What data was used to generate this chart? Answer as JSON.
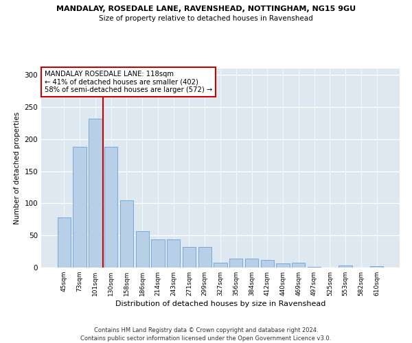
{
  "title_line1": "MANDALAY, ROSEDALE LANE, RAVENSHEAD, NOTTINGHAM, NG15 9GU",
  "title_line2": "Size of property relative to detached houses in Ravenshead",
  "xlabel": "Distribution of detached houses by size in Ravenshead",
  "ylabel": "Number of detached properties",
  "categories": [
    "45sqm",
    "73sqm",
    "101sqm",
    "130sqm",
    "158sqm",
    "186sqm",
    "214sqm",
    "243sqm",
    "271sqm",
    "299sqm",
    "327sqm",
    "356sqm",
    "384sqm",
    "412sqm",
    "440sqm",
    "469sqm",
    "497sqm",
    "525sqm",
    "553sqm",
    "582sqm",
    "610sqm"
  ],
  "values": [
    78,
    188,
    232,
    188,
    105,
    57,
    44,
    44,
    32,
    32,
    8,
    14,
    14,
    12,
    6,
    7,
    1,
    0,
    3,
    0,
    2
  ],
  "bar_color": "#b8cfe8",
  "bar_edge_color": "#6a9fd8",
  "marker_index": 2,
  "marker_label": "MANDALAY ROSEDALE LANE: 118sqm",
  "annotation_line1": "← 41% of detached houses are smaller (402)",
  "annotation_line2": "58% of semi-detached houses are larger (572) →",
  "marker_color": "#cc0000",
  "annotation_box_edge": "#cc0000",
  "annotation_box_bg": "#ffffff",
  "ylim": [
    0,
    310
  ],
  "yticks": [
    0,
    50,
    100,
    150,
    200,
    250,
    300
  ],
  "plot_bg_color": "#dde8f0",
  "fig_bg_color": "#ffffff",
  "grid_color": "#ffffff",
  "footer_line1": "Contains HM Land Registry data © Crown copyright and database right 2024.",
  "footer_line2": "Contains public sector information licensed under the Open Government Licence v3.0."
}
